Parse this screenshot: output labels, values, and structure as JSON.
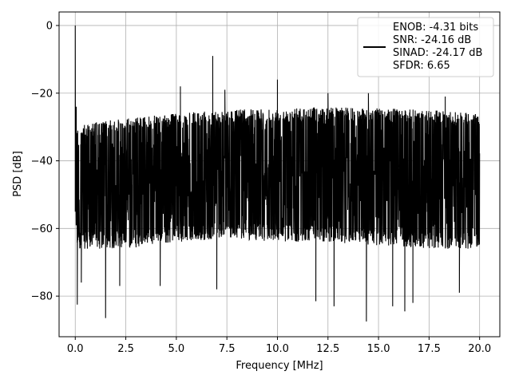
{
  "chart_data": {
    "type": "line",
    "xlabel": "Frequency [MHz]",
    "ylabel": "PSD [dB]",
    "xlim": [
      -0.8,
      21.0
    ],
    "ylim": [
      -92,
      4
    ],
    "xticks": [
      0.0,
      2.5,
      5.0,
      7.5,
      10.0,
      12.5,
      15.0,
      17.5,
      20.0
    ],
    "xtick_labels": [
      "0.0",
      "2.5",
      "5.0",
      "7.5",
      "10.0",
      "12.5",
      "15.0",
      "17.5",
      "20.0"
    ],
    "yticks": [
      0,
      -20,
      -40,
      -60,
      -80
    ],
    "ytick_labels": [
      "0",
      "−20",
      "−40",
      "−60",
      "−80"
    ],
    "grid": true,
    "legend_position": "top-right",
    "legend_lines": [
      "ENOB: -4.31 bits",
      "SNR: -24.16 dB",
      "SINAD: -24.17 dB",
      "SFDR: 6.65"
    ],
    "series": [
      {
        "color": "#000000",
        "x_range": [
          0.0,
          20.0
        ],
        "dense_noise": true,
        "upper_envelope": [
          [
            0.0,
            -30
          ],
          [
            1.0,
            -28.5
          ],
          [
            2.5,
            -27.5
          ],
          [
            5.0,
            -26
          ],
          [
            7.5,
            -25
          ],
          [
            10.0,
            -24.5
          ],
          [
            12.5,
            -24
          ],
          [
            15.0,
            -24.5
          ],
          [
            17.5,
            -25
          ],
          [
            20.0,
            -26
          ]
        ],
        "lower_envelope": [
          [
            0.0,
            -66
          ],
          [
            2.5,
            -66
          ],
          [
            5.0,
            -64
          ],
          [
            7.5,
            -63
          ],
          [
            10.0,
            -64
          ],
          [
            12.5,
            -64
          ],
          [
            15.0,
            -65
          ],
          [
            17.5,
            -66
          ],
          [
            20.0,
            -66
          ]
        ],
        "peaks": [
          [
            0.0,
            0.0
          ],
          [
            6.8,
            -9
          ],
          [
            5.2,
            -18
          ],
          [
            10.0,
            -16
          ],
          [
            7.4,
            -19
          ],
          [
            12.5,
            -20
          ],
          [
            14.5,
            -20
          ],
          [
            18.3,
            -21
          ],
          [
            0.05,
            -24
          ]
        ],
        "troughs": [
          [
            0.1,
            -82.5
          ],
          [
            1.5,
            -86.5
          ],
          [
            0.3,
            -76
          ],
          [
            2.2,
            -77
          ],
          [
            4.2,
            -77
          ],
          [
            11.9,
            -81.5
          ],
          [
            12.8,
            -83
          ],
          [
            14.4,
            -87.5
          ],
          [
            15.7,
            -83
          ],
          [
            16.3,
            -84.5
          ],
          [
            16.7,
            -82
          ],
          [
            19.0,
            -79
          ],
          [
            7.0,
            -78
          ]
        ]
      }
    ]
  }
}
